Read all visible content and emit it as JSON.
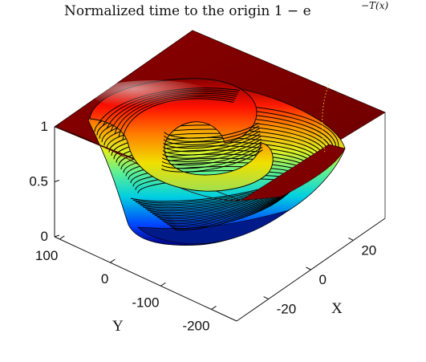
{
  "chart_data": {
    "type": "surface",
    "title": "Normalized time to the origin 1 − e",
    "title_exponent": "−T(x)",
    "xlabel": "X",
    "ylabel": "Y",
    "zlabel": "",
    "x_ticks": [
      "-20",
      "0",
      "20"
    ],
    "y_ticks": [
      "100",
      "0",
      "-100",
      "-200"
    ],
    "z_ticks": [
      "0",
      "0.5",
      "1"
    ],
    "xlim": [
      -35,
      35
    ],
    "ylim": [
      -250,
      110
    ],
    "zlim": [
      0,
      1
    ],
    "colormap": "jet",
    "contour_lines": true,
    "contour_levels": 20,
    "grid": false,
    "description_values": {
      "plateau_value": 1,
      "trough_min": 0
    }
  },
  "colors": {
    "plateau": "#7a0000",
    "contour": "#000000",
    "colormap_stops": [
      "#00007f",
      "#0000ff",
      "#00ffff",
      "#7fff7f",
      "#ffff00",
      "#ff7f00",
      "#ff0000",
      "#7f0000"
    ]
  }
}
